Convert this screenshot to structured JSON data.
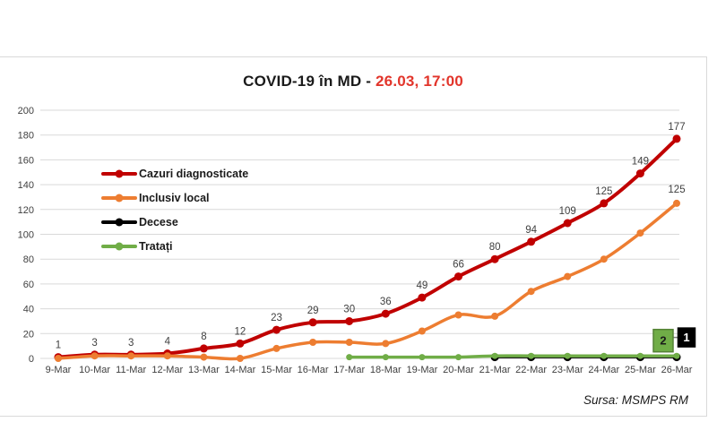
{
  "header": {
    "title_main": "COVID-19 în MD",
    "separator": " - ",
    "title_date": "26.03, 17:00",
    "title_color": "#1A1A1A",
    "date_color": "#E2352B"
  },
  "source": {
    "label": "Sursa: MSMPS RM"
  },
  "chart_data": {
    "type": "line",
    "title": "COVID-19 în MD - 26.03, 17:00",
    "categories": [
      "9-Mar",
      "10-Mar",
      "11-Mar",
      "12-Mar",
      "13-Mar",
      "14-Mar",
      "15-Mar",
      "16-Mar",
      "17-Mar",
      "18-Mar",
      "19-Mar",
      "20-Mar",
      "21-Mar",
      "22-Mar",
      "23-Mar",
      "24-Mar",
      "25-Mar",
      "26-Mar"
    ],
    "ylim": [
      0,
      200
    ],
    "ytick_step": 20,
    "grid": true,
    "grid_color": "#D9D9D9",
    "axis_color": "#404040",
    "label_color": "#404040",
    "legend_position": "inside-top-left",
    "series": [
      {
        "name": "Cazuri diagnosticate",
        "color": "#C00000",
        "line_width": 4,
        "marker_r": 4.5,
        "values": [
          1,
          3,
          3,
          4,
          8,
          12,
          23,
          29,
          30,
          36,
          49,
          66,
          80,
          94,
          109,
          125,
          149,
          177
        ],
        "show_point_labels": true
      },
      {
        "name": "Inclusiv local",
        "color": "#ED7D31",
        "line_width": 3.5,
        "marker_r": 4,
        "values": [
          0,
          2,
          2,
          2,
          1,
          0,
          8,
          13,
          13,
          12,
          22,
          35,
          34,
          54,
          66,
          80,
          101,
          125
        ],
        "show_last_label": true
      },
      {
        "name": "Decese",
        "color": "#000000",
        "line_width": 2.5,
        "marker_r": 4.5,
        "values": [
          null,
          null,
          null,
          null,
          null,
          null,
          null,
          null,
          null,
          null,
          null,
          null,
          1,
          1,
          1,
          1,
          1,
          1
        ],
        "end_box": {
          "text": "1",
          "bg": "#000000",
          "fg": "#FFFFFF",
          "border": "#000000",
          "dx": 11,
          "dy": -22,
          "w": 19,
          "h": 21,
          "leader": true
        }
      },
      {
        "name": "Tratați",
        "color": "#70AD47",
        "line_width": 3.5,
        "marker_r": 3.5,
        "values": [
          null,
          null,
          null,
          null,
          null,
          null,
          null,
          null,
          1,
          1,
          1,
          1,
          2,
          2,
          2,
          2,
          2,
          2
        ],
        "end_box": {
          "text": "2",
          "bg": "#70AD47",
          "fg": "#1A1A1A",
          "border": "#548235",
          "dx": -15,
          "dy": -17,
          "w": 22,
          "h": 25,
          "leader": false
        }
      }
    ]
  }
}
